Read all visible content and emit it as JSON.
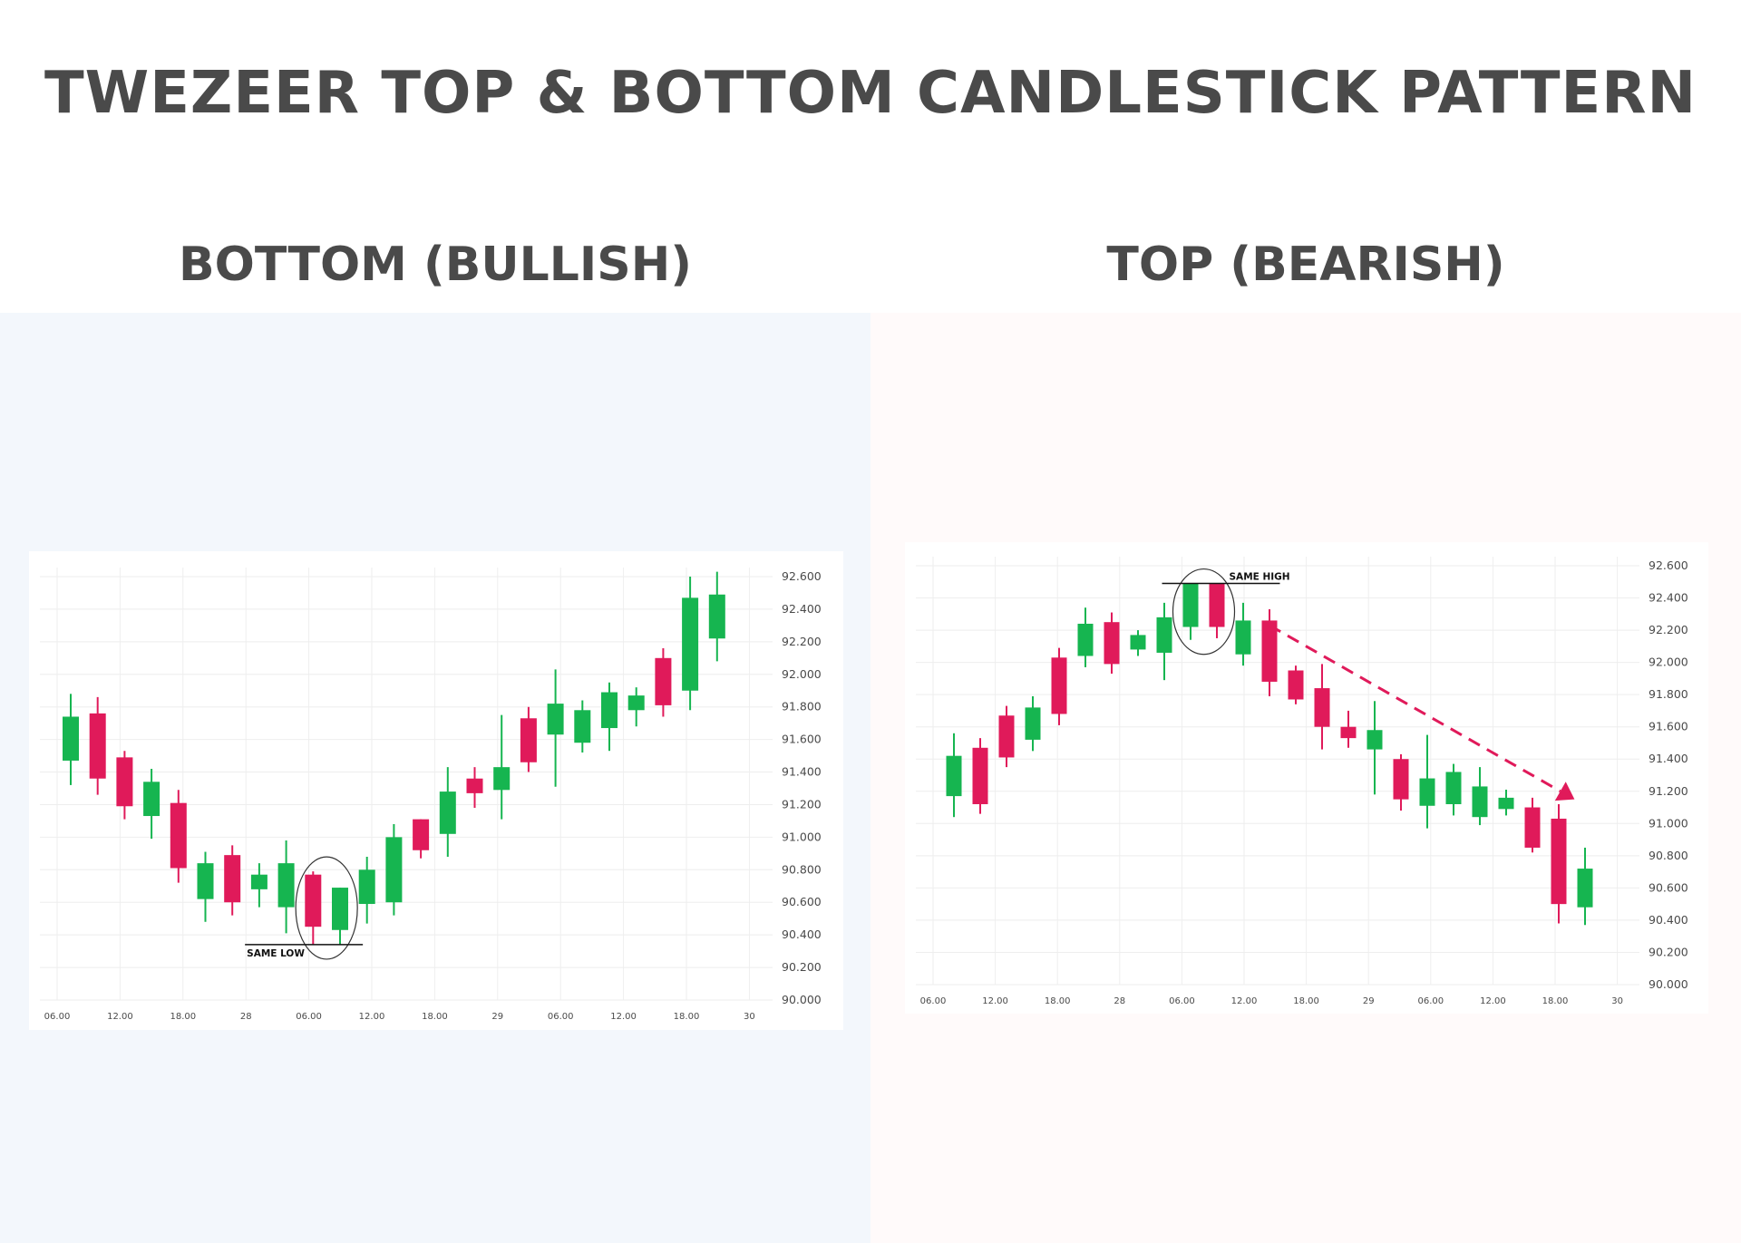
{
  "title": "TWEZEER TOP & BOTTOM CANDLESTICK PATTERN",
  "colors": {
    "bull": "#16b550",
    "bear": "#e01a5a",
    "text": "#4a4a4a",
    "grid": "#eeeeee",
    "arrow": "#e01a5a"
  },
  "chart_data": [
    {
      "type": "candlestick",
      "title": "BOTTOM (BULLISH)",
      "pattern_label": "SAME LOW",
      "ylim": [
        90.0,
        92.6
      ],
      "yticks": [
        "92.600",
        "92.400",
        "92.200",
        "92.000",
        "91.800",
        "91.600",
        "91.400",
        "91.200",
        "91.000",
        "90.800",
        "90.600",
        "90.400",
        "90.200",
        "90.000"
      ],
      "xticks": [
        "06.00",
        "12.00",
        "18.00",
        "28",
        "06.00",
        "12.00",
        "18.00",
        "29",
        "06.00",
        "12.00",
        "18.00",
        "30"
      ],
      "grid": true,
      "candles": [
        {
          "open": 91.47,
          "close": 91.74,
          "high": 91.88,
          "low": 91.32
        },
        {
          "open": 91.76,
          "close": 91.36,
          "high": 91.86,
          "low": 91.26
        },
        {
          "open": 91.49,
          "close": 91.19,
          "high": 91.53,
          "low": 91.11
        },
        {
          "open": 91.13,
          "close": 91.34,
          "high": 91.42,
          "low": 90.99
        },
        {
          "open": 91.21,
          "close": 90.81,
          "high": 91.29,
          "low": 90.72
        },
        {
          "open": 90.62,
          "close": 90.84,
          "high": 90.91,
          "low": 90.48
        },
        {
          "open": 90.89,
          "close": 90.6,
          "high": 90.95,
          "low": 90.52
        },
        {
          "open": 90.68,
          "close": 90.77,
          "high": 90.84,
          "low": 90.57
        },
        {
          "open": 90.57,
          "close": 90.84,
          "high": 90.98,
          "low": 90.41
        },
        {
          "open": 90.77,
          "close": 90.45,
          "high": 90.79,
          "low": 90.34
        },
        {
          "open": 90.43,
          "close": 90.69,
          "high": 90.69,
          "low": 90.34
        },
        {
          "open": 90.59,
          "close": 90.8,
          "high": 90.88,
          "low": 90.47
        },
        {
          "open": 90.6,
          "close": 91.0,
          "high": 91.08,
          "low": 90.52
        },
        {
          "open": 91.11,
          "close": 90.92,
          "high": 91.11,
          "low": 90.87
        },
        {
          "open": 91.02,
          "close": 91.28,
          "high": 91.43,
          "low": 90.88
        },
        {
          "open": 91.36,
          "close": 91.27,
          "high": 91.43,
          "low": 91.18
        },
        {
          "open": 91.29,
          "close": 91.43,
          "high": 91.75,
          "low": 91.11
        },
        {
          "open": 91.73,
          "close": 91.46,
          "high": 91.8,
          "low": 91.4
        },
        {
          "open": 91.63,
          "close": 91.82,
          "high": 92.03,
          "low": 91.31
        },
        {
          "open": 91.58,
          "close": 91.78,
          "high": 91.84,
          "low": 91.52
        },
        {
          "open": 91.67,
          "close": 91.89,
          "high": 91.95,
          "low": 91.53
        },
        {
          "open": 91.78,
          "close": 91.87,
          "high": 91.92,
          "low": 91.68
        },
        {
          "open": 92.1,
          "close": 91.81,
          "high": 92.16,
          "low": 91.74
        },
        {
          "open": 91.9,
          "close": 92.47,
          "high": 92.6,
          "low": 91.78
        },
        {
          "open": 92.22,
          "close": 92.49,
          "high": 92.63,
          "low": 92.08
        }
      ],
      "highlight": [
        9,
        10
      ],
      "level": 90.34
    },
    {
      "type": "candlestick",
      "title": "TOP (BEARISH)",
      "pattern_label": "SAME HIGH",
      "ylim": [
        90.0,
        92.6
      ],
      "yticks": [
        "92.600",
        "92.400",
        "92.200",
        "92.000",
        "91.800",
        "91.600",
        "91.400",
        "91.200",
        "91.000",
        "90.800",
        "90.600",
        "90.400",
        "90.200",
        "90.000"
      ],
      "xticks": [
        "06.00",
        "12.00",
        "18.00",
        "28",
        "06.00",
        "12.00",
        "18.00",
        "29",
        "06.00",
        "12.00",
        "18.00",
        "30"
      ],
      "grid": true,
      "candles": [
        {
          "open": 91.17,
          "close": 91.42,
          "high": 91.56,
          "low": 91.04
        },
        {
          "open": 91.47,
          "close": 91.12,
          "high": 91.53,
          "low": 91.06
        },
        {
          "open": 91.67,
          "close": 91.41,
          "high": 91.73,
          "low": 91.35
        },
        {
          "open": 91.52,
          "close": 91.72,
          "high": 91.79,
          "low": 91.45
        },
        {
          "open": 92.03,
          "close": 91.68,
          "high": 92.09,
          "low": 91.61
        },
        {
          "open": 92.04,
          "close": 92.24,
          "high": 92.34,
          "low": 91.97
        },
        {
          "open": 92.25,
          "close": 91.99,
          "high": 92.31,
          "low": 91.93
        },
        {
          "open": 92.08,
          "close": 92.17,
          "high": 92.2,
          "low": 92.04
        },
        {
          "open": 92.06,
          "close": 92.28,
          "high": 92.37,
          "low": 91.89
        },
        {
          "open": 92.22,
          "close": 92.49,
          "high": 92.49,
          "low": 92.14
        },
        {
          "open": 92.49,
          "close": 92.22,
          "high": 92.49,
          "low": 92.15
        },
        {
          "open": 92.05,
          "close": 92.26,
          "high": 92.37,
          "low": 91.98
        },
        {
          "open": 92.26,
          "close": 91.88,
          "high": 92.33,
          "low": 91.79
        },
        {
          "open": 91.95,
          "close": 91.77,
          "high": 91.98,
          "low": 91.74
        },
        {
          "open": 91.84,
          "close": 91.6,
          "high": 91.99,
          "low": 91.46
        },
        {
          "open": 91.6,
          "close": 91.53,
          "high": 91.7,
          "low": 91.47
        },
        {
          "open": 91.46,
          "close": 91.58,
          "high": 91.76,
          "low": 91.18
        },
        {
          "open": 91.4,
          "close": 91.15,
          "high": 91.43,
          "low": 91.08
        },
        {
          "open": 91.11,
          "close": 91.28,
          "high": 91.55,
          "low": 90.97
        },
        {
          "open": 91.12,
          "close": 91.32,
          "high": 91.37,
          "low": 91.05
        },
        {
          "open": 91.04,
          "close": 91.23,
          "high": 91.35,
          "low": 90.99
        },
        {
          "open": 91.09,
          "close": 91.16,
          "high": 91.21,
          "low": 91.05
        },
        {
          "open": 91.1,
          "close": 90.85,
          "high": 91.16,
          "low": 90.82
        },
        {
          "open": 91.03,
          "close": 90.5,
          "high": 91.12,
          "low": 90.38
        },
        {
          "open": 90.48,
          "close": 90.72,
          "high": 90.85,
          "low": 90.37
        }
      ],
      "highlight": [
        9,
        10
      ],
      "level": 92.49,
      "arrow": {
        "from": [
          12,
          92.23
        ],
        "to": [
          23.6,
          91.15
        ]
      }
    }
  ]
}
